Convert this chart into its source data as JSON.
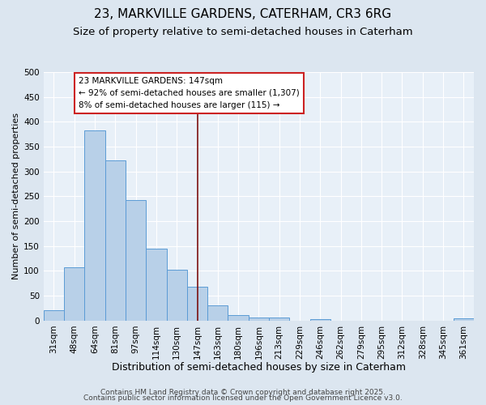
{
  "title1": "23, MARKVILLE GARDENS, CATERHAM, CR3 6RG",
  "title2": "Size of property relative to semi-detached houses in Caterham",
  "xlabel": "Distribution of semi-detached houses by size in Caterham",
  "ylabel": "Number of semi-detached properties",
  "categories": [
    "31sqm",
    "48sqm",
    "64sqm",
    "81sqm",
    "97sqm",
    "114sqm",
    "130sqm",
    "147sqm",
    "163sqm",
    "180sqm",
    "196sqm",
    "213sqm",
    "229sqm",
    "246sqm",
    "262sqm",
    "279sqm",
    "295sqm",
    "312sqm",
    "328sqm",
    "345sqm",
    "361sqm"
  ],
  "values": [
    21,
    107,
    383,
    323,
    242,
    144,
    102,
    68,
    30,
    11,
    6,
    6,
    0,
    3,
    0,
    0,
    0,
    0,
    0,
    0,
    4
  ],
  "bar_color": "#b8d0e8",
  "bar_edge_color": "#5b9bd5",
  "vline_x_index": 7,
  "vline_color": "#7b1010",
  "annotation_text": "23 MARKVILLE GARDENS: 147sqm\n← 92% of semi-detached houses are smaller (1,307)\n8% of semi-detached houses are larger (115) →",
  "annotation_box_color": "#ffffff",
  "annotation_box_edge": "#cc2222",
  "ylim": [
    0,
    500
  ],
  "yticks": [
    0,
    50,
    100,
    150,
    200,
    250,
    300,
    350,
    400,
    450,
    500
  ],
  "bg_color": "#dce6f0",
  "plot_bg_color": "#e8f0f8",
  "footer1": "Contains HM Land Registry data © Crown copyright and database right 2025.",
  "footer2": "Contains public sector information licensed under the Open Government Licence v3.0.",
  "title1_fontsize": 11,
  "title2_fontsize": 9.5,
  "xlabel_fontsize": 9,
  "ylabel_fontsize": 8,
  "tick_fontsize": 7.5,
  "annotation_fontsize": 7.5,
  "footer_fontsize": 6.5
}
